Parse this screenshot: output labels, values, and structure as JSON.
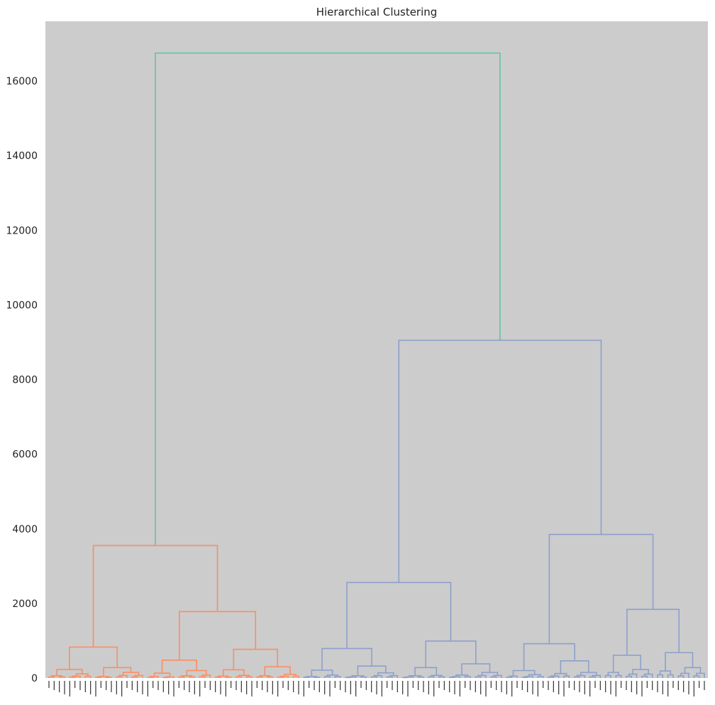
{
  "chart_data": {
    "type": "dendrogram",
    "title": "Hierarchical Clustering",
    "xlabel": "",
    "ylabel": "",
    "ylim": [
      0,
      17600
    ],
    "yticks": [
      0,
      2000,
      4000,
      6000,
      8000,
      10000,
      12000,
      14000,
      16000
    ],
    "grid": false,
    "background": "#cccccc",
    "colors": {
      "root": "#66c2a5",
      "cluster_1": "#fc8d62",
      "cluster_2": "#8da0cb"
    },
    "leaf_count": 200,
    "leaf_labels_legible": false,
    "links": [
      {
        "height": 16750,
        "color": "root"
      },
      {
        "height": 3550,
        "color": "cluster_1"
      },
      {
        "height": 9050,
        "color": "cluster_2"
      },
      {
        "height": 830,
        "color": "cluster_1"
      },
      {
        "height": 1780,
        "color": "cluster_1"
      },
      {
        "height": 2560,
        "color": "cluster_2"
      },
      {
        "height": 3850,
        "color": "cluster_2"
      },
      {
        "height": 230,
        "color": "cluster_1"
      },
      {
        "height": 280,
        "color": "cluster_1"
      },
      {
        "height": 480,
        "color": "cluster_1"
      },
      {
        "height": 770,
        "color": "cluster_1"
      },
      {
        "height": 790,
        "color": "cluster_2"
      },
      {
        "height": 990,
        "color": "cluster_2"
      },
      {
        "height": 920,
        "color": "cluster_2"
      },
      {
        "height": 1840,
        "color": "cluster_2"
      },
      {
        "height": 610,
        "color": "cluster_2"
      },
      {
        "height": 680,
        "color": "cluster_2"
      }
    ]
  }
}
